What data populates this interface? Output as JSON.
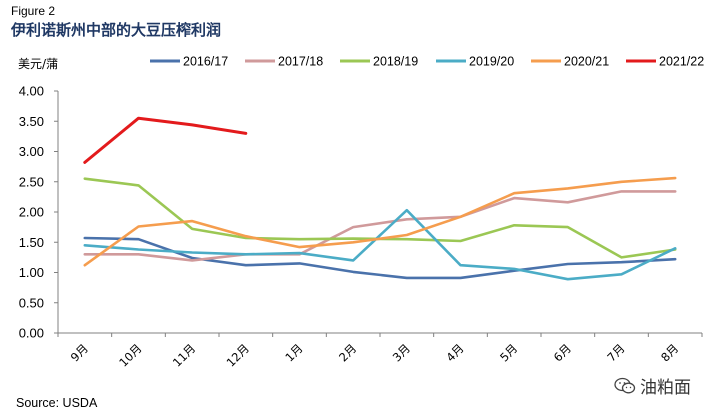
{
  "figure_label": "Figure 2",
  "source": "Source: USDA",
  "watermark_text": "油粕面",
  "watermark_icon": "wechat-icon",
  "chart_data": {
    "type": "line",
    "title": "伊利诺斯州中部的大豆压榨利润",
    "ylabel": "美元/蒲",
    "xlabel": "",
    "ylim": [
      0,
      4
    ],
    "yticks": [
      "0.00",
      "0.50",
      "1.00",
      "1.50",
      "2.00",
      "2.50",
      "3.00",
      "3.50",
      "4.00"
    ],
    "categories": [
      "9月",
      "10月",
      "11月",
      "12月",
      "1月",
      "2月",
      "3月",
      "4月",
      "5月",
      "6月",
      "7月",
      "8月"
    ],
    "grid": false,
    "legend_position": "top",
    "series": [
      {
        "name": "2016/17",
        "color": "#4a72ab",
        "values": [
          1.57,
          1.55,
          1.24,
          1.12,
          1.15,
          1.01,
          0.91,
          0.91,
          1.03,
          1.14,
          1.17,
          1.22
        ]
      },
      {
        "name": "2017/18",
        "color": "#d09a9b",
        "values": [
          1.3,
          1.3,
          1.2,
          1.3,
          1.3,
          1.75,
          1.88,
          1.92,
          2.23,
          2.16,
          2.34,
          2.34
        ]
      },
      {
        "name": "2018/19",
        "color": "#9bc754",
        "values": [
          2.55,
          2.44,
          1.72,
          1.57,
          1.55,
          1.56,
          1.55,
          1.52,
          1.78,
          1.75,
          1.25,
          1.38
        ]
      },
      {
        "name": "2019/20",
        "color": "#4bacc6",
        "values": [
          1.45,
          1.38,
          1.33,
          1.3,
          1.32,
          1.2,
          2.03,
          1.12,
          1.06,
          0.89,
          0.97,
          1.4
        ]
      },
      {
        "name": "2020/21",
        "color": "#f59d4e",
        "values": [
          1.12,
          1.76,
          1.85,
          1.6,
          1.42,
          1.5,
          1.62,
          1.92,
          2.31,
          2.39,
          2.5,
          2.56
        ]
      },
      {
        "name": "2021/22",
        "color": "#e31a1c",
        "values": [
          2.82,
          3.55,
          3.44,
          3.3,
          null,
          null,
          null,
          null,
          null,
          null,
          null,
          null
        ]
      }
    ]
  }
}
